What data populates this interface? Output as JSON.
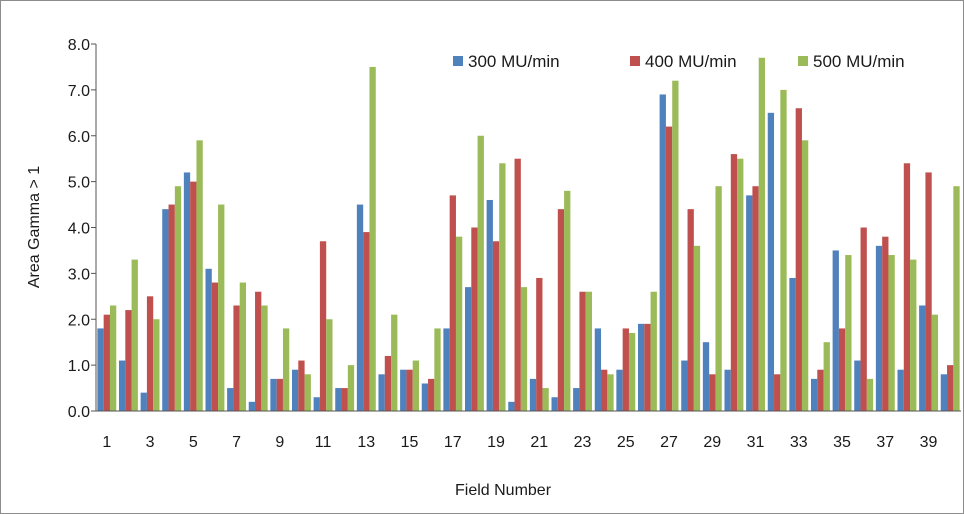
{
  "chart_data": {
    "type": "bar",
    "xlabel": "Field Number",
    "ylabel": "Area  Gamma > 1",
    "ylim": [
      0,
      8
    ],
    "yticks": [
      "0.0",
      "1.0",
      "2.0",
      "3.0",
      "4.0",
      "5.0",
      "6.0",
      "7.0",
      "8.0"
    ],
    "categories": [
      "1",
      "2",
      "3",
      "4",
      "5",
      "6",
      "7",
      "8",
      "9",
      "10",
      "11",
      "12",
      "13",
      "14",
      "15",
      "16",
      "17",
      "18",
      "19",
      "20",
      "21",
      "22",
      "23",
      "24",
      "25",
      "26",
      "27",
      "28",
      "29",
      "30",
      "31",
      "32",
      "33",
      "34",
      "35",
      "36",
      "37",
      "38",
      "39",
      "40"
    ],
    "xtick_labels": [
      "1",
      "",
      "3",
      "",
      "5",
      "",
      "7",
      "",
      "9",
      "",
      "11",
      "",
      "13",
      "",
      "15",
      "",
      "17",
      "",
      "19",
      "",
      "21",
      "",
      "23",
      "",
      "25",
      "",
      "27",
      "",
      "29",
      "",
      "31",
      "",
      "33",
      "",
      "35",
      "",
      "37",
      "",
      "39",
      ""
    ],
    "legend_position": "top-right",
    "grid": false,
    "series": [
      {
        "name": "300 MU/min",
        "color": "#4f81bd",
        "values": [
          1.8,
          1.1,
          0.4,
          4.4,
          5.2,
          3.1,
          0.5,
          0.2,
          0.7,
          0.9,
          0.3,
          0.5,
          4.5,
          0.8,
          0.9,
          0.6,
          1.8,
          2.7,
          4.6,
          0.2,
          0.7,
          0.3,
          0.5,
          1.8,
          0.9,
          1.9,
          6.9,
          1.1,
          1.5,
          0.9,
          4.7,
          6.5,
          2.9,
          0.7,
          3.5,
          1.1,
          3.6,
          0.9,
          2.3,
          0.8
        ]
      },
      {
        "name": "400 MU/min",
        "color": "#c0504d",
        "values": [
          2.1,
          2.2,
          2.5,
          4.5,
          5.0,
          2.8,
          2.3,
          2.6,
          0.7,
          1.1,
          3.7,
          0.5,
          3.9,
          1.2,
          0.9,
          0.7,
          4.7,
          4.0,
          3.7,
          5.5,
          2.9,
          4.4,
          2.6,
          0.9,
          1.8,
          1.9,
          6.2,
          4.4,
          0.8,
          5.6,
          4.9,
          0.8,
          6.6,
          0.9,
          1.8,
          4.0,
          3.8,
          5.4,
          5.2,
          1.0
        ]
      },
      {
        "name": "500 MU/min",
        "color": "#9bbb59",
        "values": [
          2.3,
          3.3,
          2.0,
          4.9,
          5.9,
          4.5,
          2.8,
          2.3,
          1.8,
          0.8,
          2.0,
          1.0,
          7.5,
          2.1,
          1.1,
          1.8,
          3.8,
          6.0,
          5.4,
          2.7,
          0.5,
          4.8,
          2.6,
          0.8,
          1.7,
          2.6,
          7.2,
          3.6,
          4.9,
          5.5,
          7.7,
          7.0,
          5.9,
          1.5,
          3.4,
          0.7,
          3.4,
          3.3,
          2.1,
          4.9
        ]
      }
    ]
  }
}
